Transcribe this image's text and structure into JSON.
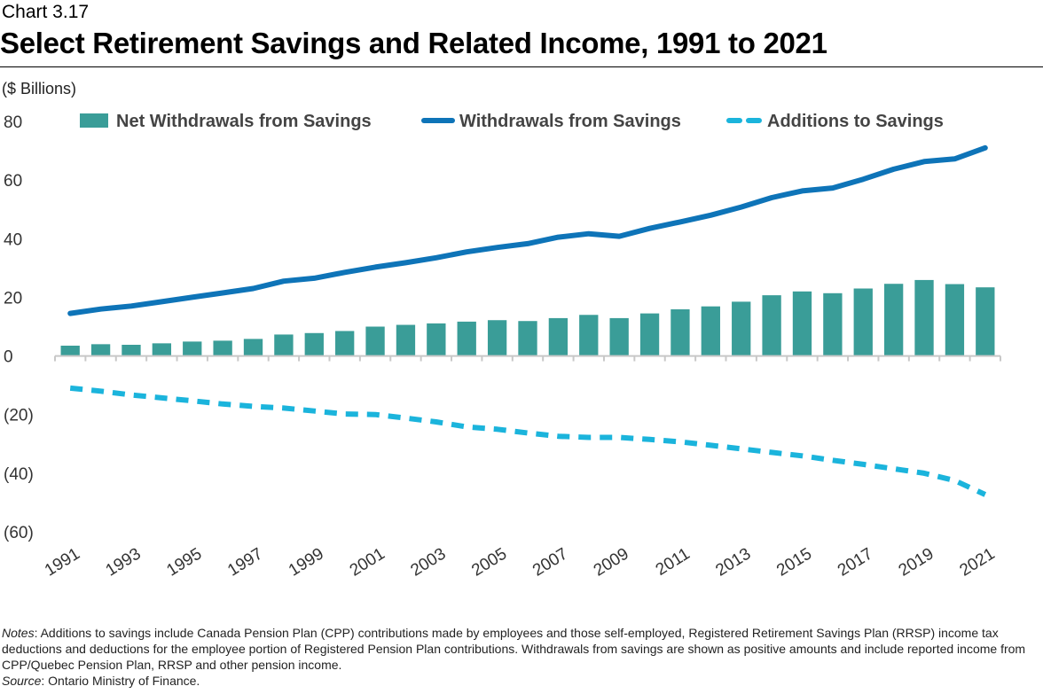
{
  "header": {
    "chart_number": "Chart 3.17",
    "title": "Select Retirement Savings and Related Income, 1991 to 2021"
  },
  "unit_label": "($ Billions)",
  "colors": {
    "bars": "#3a9d98",
    "withdrawals_line": "#0e74b8",
    "additions_line": "#1bb4dc",
    "axis": "#c8c8c8"
  },
  "chart_data": {
    "type": "bar",
    "title": "Select Retirement Savings and Related Income, 1991 to 2021",
    "ylabel": "($ Billions)",
    "xlabel": "",
    "ylim": [
      -60,
      80
    ],
    "yticks": [
      80,
      60,
      40,
      20,
      0,
      -20,
      -40,
      -60
    ],
    "ytick_labels": [
      "80",
      "60",
      "40",
      "20",
      "0",
      "(20)",
      "(40)",
      "(60)"
    ],
    "legend_position": "top",
    "categories": [
      "1991",
      "1992",
      "1993",
      "1994",
      "1995",
      "1996",
      "1997",
      "1998",
      "1999",
      "2000",
      "2001",
      "2002",
      "2003",
      "2004",
      "2005",
      "2006",
      "2007",
      "2008",
      "2009",
      "2010",
      "2011",
      "2012",
      "2013",
      "2014",
      "2015",
      "2016",
      "2017",
      "2018",
      "2019",
      "2020",
      "2021"
    ],
    "xtick_labels": [
      "1991",
      "1993",
      "1995",
      "1997",
      "1999",
      "2001",
      "2003",
      "2005",
      "2007",
      "2009",
      "2011",
      "2013",
      "2015",
      "2017",
      "2019",
      "2021"
    ],
    "series": [
      {
        "name": "Net Withdrawals from Savings",
        "type": "bar",
        "values": [
          3.5,
          4.0,
          3.8,
          4.3,
          4.9,
          5.2,
          5.8,
          7.3,
          7.8,
          8.5,
          10.0,
          10.6,
          11.1,
          11.7,
          12.2,
          11.9,
          12.9,
          14.0,
          12.9,
          14.5,
          15.9,
          16.9,
          18.5,
          20.7,
          22.0,
          21.4,
          23.0,
          24.6,
          25.9,
          24.5,
          23.4
        ]
      },
      {
        "name": "Withdrawals from Savings",
        "type": "line",
        "style": "solid",
        "values": [
          14.5,
          16.0,
          17.0,
          18.5,
          20.0,
          21.5,
          23.0,
          25.5,
          26.5,
          28.5,
          30.3,
          31.8,
          33.5,
          35.5,
          37.0,
          38.3,
          40.5,
          41.7,
          40.8,
          43.5,
          45.7,
          48.0,
          50.8,
          54.0,
          56.3,
          57.3,
          60.3,
          63.7,
          66.3,
          67.2,
          71.0
        ]
      },
      {
        "name": "Additions to Savings",
        "type": "line",
        "style": "dashed",
        "values": [
          -11.0,
          -12.0,
          -13.3,
          -14.3,
          -15.3,
          -16.4,
          -17.2,
          -17.8,
          -18.8,
          -19.8,
          -20.0,
          -21.2,
          -22.5,
          -24.2,
          -25.0,
          -26.3,
          -27.4,
          -27.8,
          -27.8,
          -28.5,
          -29.3,
          -30.5,
          -31.7,
          -32.9,
          -34.1,
          -35.6,
          -37.0,
          -38.5,
          -40.0,
          -42.5,
          -47.3
        ]
      }
    ]
  },
  "notes": {
    "notes_label": "Notes",
    "notes_text": ": Additions to savings include Canada Pension Plan (CPP) contributions made by employees and those self-employed, Registered Retirement Savings Plan (RRSP) income tax deductions and deductions for the employee portion of Registered Pension Plan contributions. Withdrawals from savings are shown as positive amounts and include reported income from CPP/Quebec Pension Plan, RRSP and other pension income.",
    "source_label": "Source",
    "source_text": ": Ontario Ministry of Finance."
  }
}
